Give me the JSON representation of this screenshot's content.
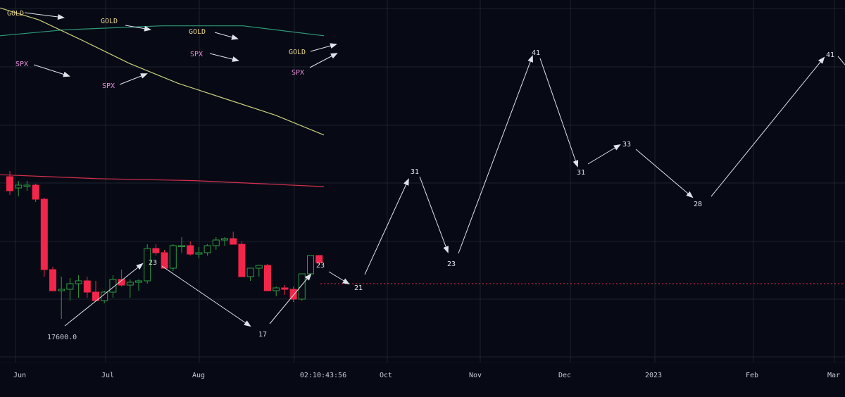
{
  "chart_data": {
    "type": "candlestick",
    "x_axis_labels": [
      "Jun",
      "Jul",
      "Aug",
      "Oct",
      "Nov",
      "Dec",
      "2023",
      "Feb",
      "Mar"
    ],
    "time_readout": "02:10:43:56",
    "price_marker": "17600.0",
    "colors": {
      "background": "#070a14",
      "up": "#2e9c43",
      "down": "#f2254a",
      "ma_slow": "#2f9a78",
      "ma_mid": "#c9cf7c",
      "ma_long": "#d8304f",
      "grid": "#1c2230",
      "annotation": "#dfe3ea",
      "gold_label": "#e6d38a",
      "spx_label": "#e58ad8",
      "current_price_line": "#f2254a"
    },
    "candles": [
      {
        "o": 0.76,
        "h": 0.8,
        "l": 0.63,
        "c": 0.66
      },
      {
        "o": 0.68,
        "h": 0.73,
        "l": 0.62,
        "c": 0.7
      },
      {
        "o": 0.7,
        "h": 0.73,
        "l": 0.66,
        "c": 0.7
      },
      {
        "o": 0.7,
        "h": 0.71,
        "l": 0.58,
        "c": 0.6
      },
      {
        "o": 0.6,
        "h": 0.61,
        "l": 0.05,
        "c": 0.1
      },
      {
        "o": 0.1,
        "h": 0.12,
        "l": -0.05,
        "c": -0.05
      },
      {
        "o": -0.05,
        "h": 0.05,
        "l": -0.25,
        "c": -0.04
      },
      {
        "o": -0.04,
        "h": 0.04,
        "l": -0.12,
        "c": 0.0
      },
      {
        "o": 0.0,
        "h": 0.06,
        "l": -0.1,
        "c": 0.02
      },
      {
        "o": 0.02,
        "h": 0.05,
        "l": -0.1,
        "c": -0.06
      },
      {
        "o": -0.06,
        "h": 0.02,
        "l": -0.12,
        "c": -0.12
      },
      {
        "o": -0.12,
        "h": -0.05,
        "l": -0.14,
        "c": -0.06
      },
      {
        "o": -0.06,
        "h": 0.06,
        "l": -0.1,
        "c": 0.03
      },
      {
        "o": 0.03,
        "h": 0.1,
        "l": -0.02,
        "c": -0.01
      },
      {
        "o": -0.01,
        "h": 0.03,
        "l": -0.1,
        "c": 0.01
      },
      {
        "o": 0.01,
        "h": 0.03,
        "l": -0.05,
        "c": 0.02
      },
      {
        "o": 0.02,
        "h": 0.28,
        "l": 0.0,
        "c": 0.25
      },
      {
        "o": 0.25,
        "h": 0.28,
        "l": 0.2,
        "c": 0.22
      },
      {
        "o": 0.22,
        "h": 0.24,
        "l": 0.11,
        "c": 0.11
      },
      {
        "o": 0.11,
        "h": 0.28,
        "l": 0.09,
        "c": 0.27
      },
      {
        "o": 0.27,
        "h": 0.33,
        "l": 0.22,
        "c": 0.27
      },
      {
        "o": 0.27,
        "h": 0.3,
        "l": 0.2,
        "c": 0.21
      },
      {
        "o": 0.21,
        "h": 0.26,
        "l": 0.18,
        "c": 0.22
      },
      {
        "o": 0.22,
        "h": 0.28,
        "l": 0.2,
        "c": 0.27
      },
      {
        "o": 0.27,
        "h": 0.33,
        "l": 0.24,
        "c": 0.31
      },
      {
        "o": 0.31,
        "h": 0.33,
        "l": 0.27,
        "c": 0.32
      },
      {
        "o": 0.32,
        "h": 0.37,
        "l": 0.28,
        "c": 0.28
      },
      {
        "o": 0.28,
        "h": 0.3,
        "l": 0.05,
        "c": 0.05
      },
      {
        "o": 0.05,
        "h": 0.1,
        "l": 0.02,
        "c": 0.11
      },
      {
        "o": 0.11,
        "h": 0.13,
        "l": 0.05,
        "c": 0.13
      },
      {
        "o": 0.13,
        "h": 0.14,
        "l": -0.05,
        "c": -0.05
      },
      {
        "o": -0.05,
        "h": -0.02,
        "l": -0.09,
        "c": -0.03
      },
      {
        "o": -0.03,
        "h": -0.01,
        "l": -0.08,
        "c": -0.04
      },
      {
        "o": -0.04,
        "h": -0.02,
        "l": -0.13,
        "c": -0.11
      },
      {
        "o": -0.11,
        "h": 0.07,
        "l": -0.12,
        "c": 0.07
      },
      {
        "o": 0.07,
        "h": 0.2,
        "l": 0.05,
        "c": 0.2
      },
      {
        "o": 0.2,
        "h": 0.2,
        "l": 0.13,
        "c": 0.15
      }
    ],
    "moving_averages": [
      {
        "name": "ma_slow",
        "points": [
          [
            0,
            0.91
          ],
          [
            0.2,
            0.925
          ],
          [
            0.5,
            0.935
          ],
          [
            0.75,
            0.935
          ],
          [
            1.0,
            0.91
          ]
        ]
      },
      {
        "name": "ma_mid",
        "points": [
          [
            0,
            0.98
          ],
          [
            0.12,
            0.95
          ],
          [
            0.25,
            0.9
          ],
          [
            0.4,
            0.84
          ],
          [
            0.55,
            0.79
          ],
          [
            0.7,
            0.75
          ],
          [
            0.85,
            0.71
          ],
          [
            1.0,
            0.66
          ]
        ]
      },
      {
        "name": "ma_long",
        "points": [
          [
            0,
            0.56
          ],
          [
            0.3,
            0.55
          ],
          [
            0.6,
            0.545
          ],
          [
            1.0,
            0.53
          ]
        ]
      }
    ],
    "wave_labels": [
      "23",
      "17",
      "23",
      "21",
      "31",
      "23",
      "41",
      "31",
      "33",
      "28",
      "41"
    ],
    "legend_labels": [
      "GOLD",
      "GOLD",
      "GOLD",
      "GOLD",
      "SPX",
      "SPX",
      "SPX",
      "SPX"
    ]
  }
}
